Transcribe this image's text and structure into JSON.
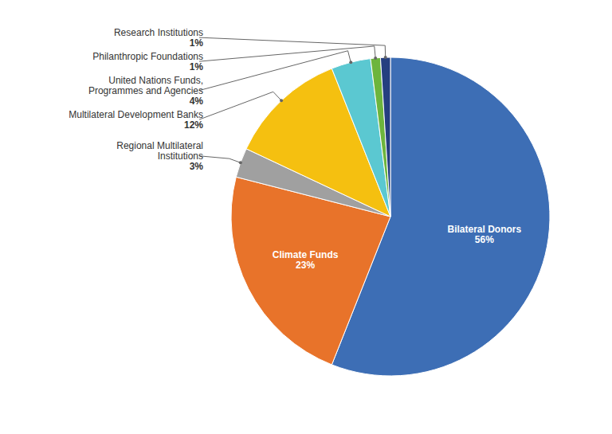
{
  "chart_data": {
    "type": "pie",
    "categories": [
      "Bilateral Donors",
      "Climate Funds",
      "Regional Multilateral\nInstitutions",
      "Multilateral Development Banks",
      "United Nations Funds,\nProgrammes and Agencies",
      "Philanthropic Foundations",
      "Research Institutions"
    ],
    "values": [
      56,
      23,
      3,
      12,
      4,
      1,
      1
    ],
    "value_labels": [
      "56%",
      "23%",
      "3%",
      "12%",
      "4%",
      "1%",
      "1%"
    ],
    "colors": [
      "#3D6EB5",
      "#E8732A",
      "#A0A0A0",
      "#F5C010",
      "#5BC8D1",
      "#6DB53D",
      "#253F80"
    ],
    "data_labels": true
  }
}
